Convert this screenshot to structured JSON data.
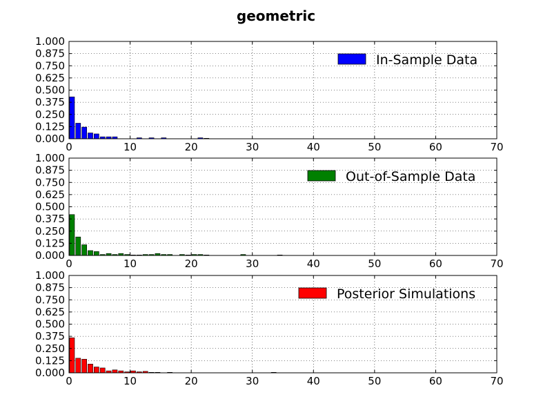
{
  "figure": {
    "title": "geometric"
  },
  "chart_data": [
    {
      "type": "bar",
      "title": "",
      "xlabel": "",
      "ylabel": "",
      "xlim": [
        0,
        70
      ],
      "ylim": [
        0,
        1
      ],
      "x_ticks": [
        "0",
        "10",
        "20",
        "30",
        "40",
        "50",
        "60",
        "70"
      ],
      "y_ticks": [
        "0.000",
        "0.125",
        "0.250",
        "0.375",
        "0.500",
        "0.625",
        "0.750",
        "0.875",
        "1.000"
      ],
      "grid": true,
      "legend_position": "top-right",
      "series": [
        {
          "name": "In-Sample Data",
          "color": "#0000ff",
          "x": [
            0,
            1,
            2,
            3,
            4,
            5,
            6,
            7,
            11,
            13,
            15,
            21,
            22
          ],
          "values": [
            0.43,
            0.16,
            0.12,
            0.06,
            0.05,
            0.02,
            0.02,
            0.02,
            0.01,
            0.01,
            0.01,
            0.01,
            0.005
          ]
        }
      ]
    },
    {
      "type": "bar",
      "title": "",
      "xlabel": "",
      "ylabel": "",
      "xlim": [
        0,
        70
      ],
      "ylim": [
        0,
        1
      ],
      "x_ticks": [
        "0",
        "10",
        "20",
        "30",
        "40",
        "50",
        "60",
        "70"
      ],
      "y_ticks": [
        "0.000",
        "0.125",
        "0.250",
        "0.375",
        "0.500",
        "0.625",
        "0.750",
        "0.875",
        "1.000"
      ],
      "grid": true,
      "legend_position": "top-right",
      "series": [
        {
          "name": "Out-of-Sample Data",
          "color": "#008000",
          "x": [
            0,
            1,
            2,
            3,
            4,
            5,
            6,
            7,
            8,
            9,
            10,
            11,
            12,
            13,
            14,
            15,
            16,
            18,
            19,
            20,
            21,
            22,
            28,
            34
          ],
          "values": [
            0.42,
            0.19,
            0.11,
            0.05,
            0.04,
            0.01,
            0.02,
            0.01,
            0.02,
            0.01,
            0.005,
            0.005,
            0.01,
            0.01,
            0.02,
            0.01,
            0.01,
            0.01,
            0.005,
            0.01,
            0.01,
            0.005,
            0.01,
            0.005
          ]
        }
      ]
    },
    {
      "type": "bar",
      "title": "",
      "xlabel": "",
      "ylabel": "",
      "xlim": [
        0,
        70
      ],
      "ylim": [
        0,
        1
      ],
      "x_ticks": [
        "0",
        "10",
        "20",
        "30",
        "40",
        "50",
        "60",
        "70"
      ],
      "y_ticks": [
        "0.000",
        "0.125",
        "0.250",
        "0.375",
        "0.500",
        "0.625",
        "0.750",
        "0.875",
        "1.000"
      ],
      "grid": true,
      "legend_position": "top-right",
      "series": [
        {
          "name": "Posterior Simulations",
          "color": "#ff0000",
          "x": [
            0,
            1,
            2,
            3,
            4,
            5,
            6,
            7,
            8,
            9,
            10,
            11,
            12,
            13,
            14,
            16,
            33
          ],
          "values": [
            0.36,
            0.15,
            0.14,
            0.09,
            0.06,
            0.05,
            0.02,
            0.03,
            0.02,
            0.01,
            0.02,
            0.01,
            0.015,
            0.005,
            0.005,
            0.005,
            0.005
          ]
        }
      ]
    }
  ]
}
